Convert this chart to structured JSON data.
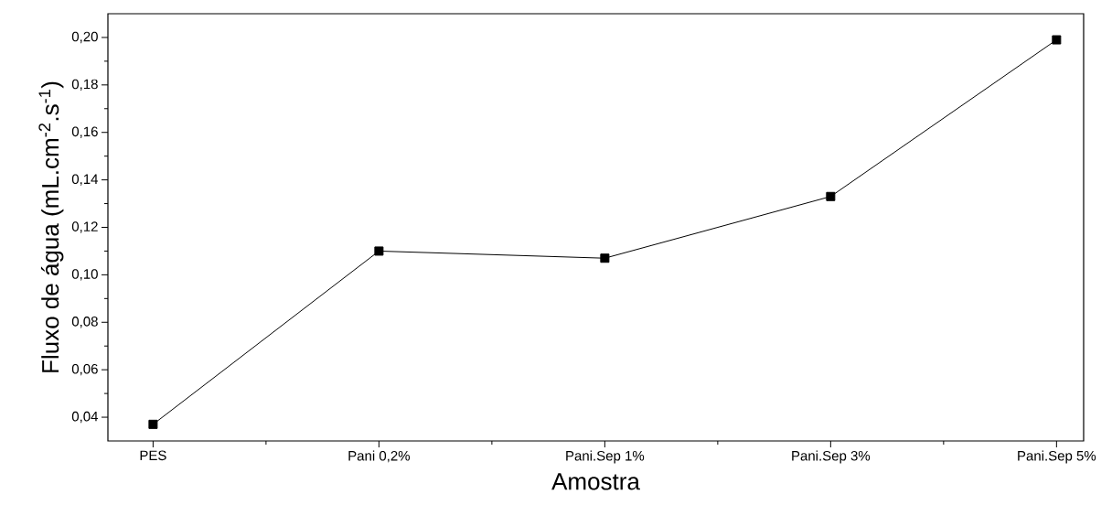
{
  "chart_data": {
    "type": "line",
    "xlabel": "Amostra",
    "ylabel": "Fluxo de água (mL.cm$^{-2}$.s$^{-1}$)",
    "categories": [
      "PES",
      "Pani 0,2%",
      "Pani.Sep 1%",
      "Pani.Sep 3%",
      "Pani.Sep 5%"
    ],
    "series": [
      {
        "color": "#000000",
        "values": [
          0.037,
          0.11,
          0.107,
          0.133,
          0.199
        ]
      }
    ],
    "ylim": [
      0.03,
      0.21
    ],
    "yticks": [
      {
        "value": 0.04,
        "label": "0,04"
      },
      {
        "value": 0.06,
        "label": "0,06"
      },
      {
        "value": 0.08,
        "label": "0,08"
      },
      {
        "value": 0.1,
        "label": "0,10"
      },
      {
        "value": 0.12,
        "label": "0,12"
      },
      {
        "value": 0.14,
        "label": "0,14"
      },
      {
        "value": 0.16,
        "label": "0,16"
      },
      {
        "value": 0.18,
        "label": "0,18"
      },
      {
        "value": 0.2,
        "label": "0,20"
      }
    ],
    "marker": "square",
    "line_style": "solid"
  }
}
